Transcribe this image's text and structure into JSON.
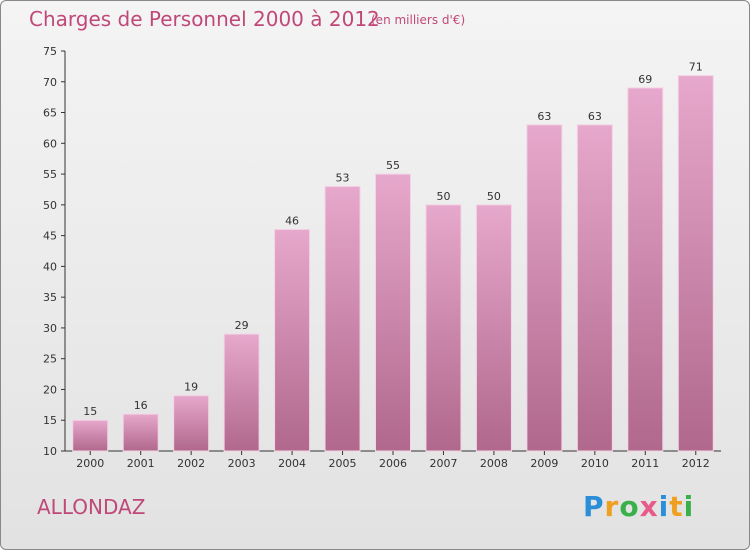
{
  "header": {
    "title": "Charges de Personnel 2000 à 2012",
    "subtitle": "(en milliers d'€)"
  },
  "footer": {
    "place": "ALLONDAZ",
    "logo_text": "Proxiti",
    "logo_colors": [
      "#2a8fd8",
      "#f0a020",
      "#3ab04a",
      "#e85a8a",
      "#2a8fd8",
      "#f0a020",
      "#3ab04a"
    ]
  },
  "colors": {
    "bar_light": "#e6a8cc",
    "bar_dark": "#b0688c",
    "text": "#c04878"
  },
  "chart_data": {
    "type": "bar",
    "categories": [
      "2000",
      "2001",
      "2002",
      "2003",
      "2004",
      "2005",
      "2006",
      "2007",
      "2008",
      "2009",
      "2010",
      "2011",
      "2012"
    ],
    "values": [
      15,
      16,
      19,
      29,
      46,
      53,
      55,
      50,
      50,
      63,
      63,
      69,
      71
    ],
    "ylim": [
      10,
      75
    ],
    "yticks": [
      10,
      15,
      20,
      25,
      30,
      35,
      40,
      45,
      50,
      55,
      60,
      65,
      70,
      75
    ],
    "grid": false,
    "title": "Charges de Personnel 2000 à 2012",
    "subtitle": "(en milliers d'€)"
  }
}
